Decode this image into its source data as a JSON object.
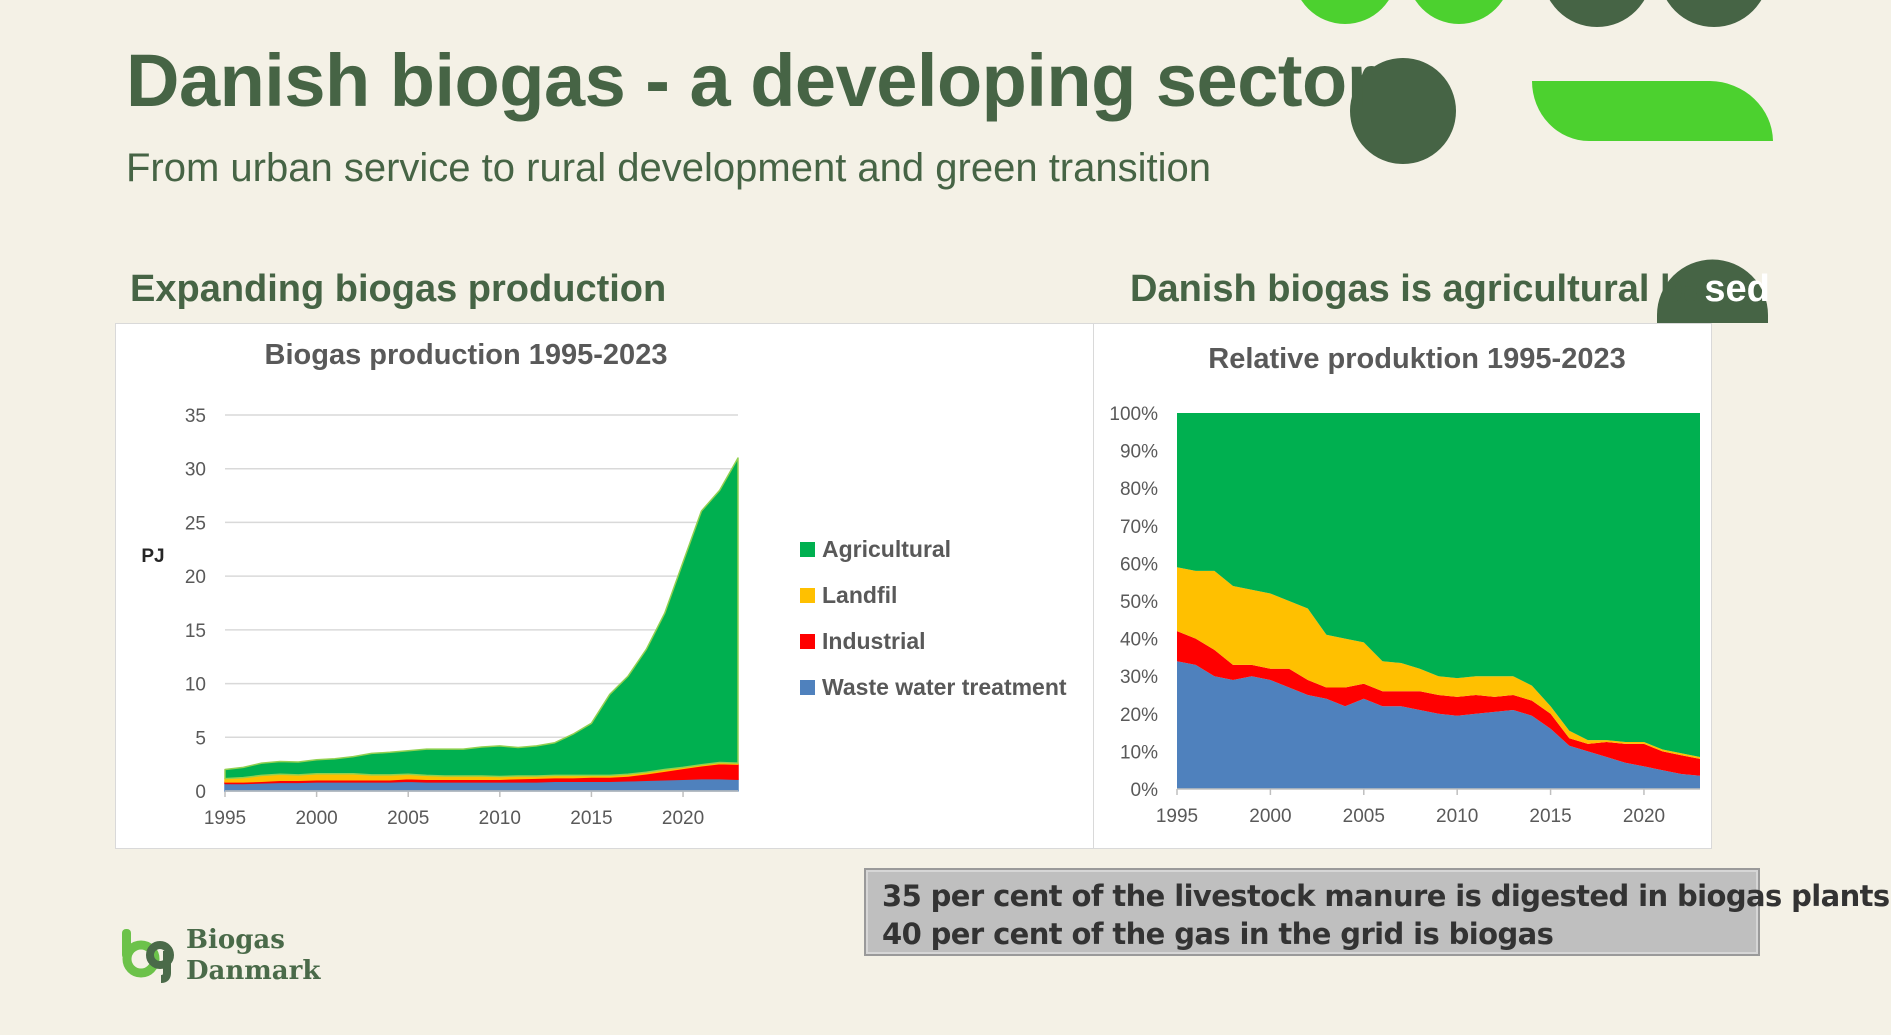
{
  "slide": {
    "title": "Danish biogas - a developing sector",
    "subtitle": "From urban service to rural development and green transition",
    "left_heading": "Expanding biogas production",
    "right_heading_dark": "Danish biogas is agricultural ba",
    "right_heading_light": "sed",
    "info_line_1": "35 per cent of the livestock manure is digested in biogas plants",
    "info_line_2": "40 per cent of the gas in the grid is biogas",
    "logo_line_1": "Biogas",
    "logo_line_2": "Danmark"
  },
  "colors": {
    "agricultural": "#00b050",
    "landfil": "#ffc000",
    "industrial": "#ff0000",
    "waste_water": "#4f81bd",
    "dark_green": "#466445",
    "bright_green": "#4cd12f"
  },
  "icons": [
    "biogas-danmark-logo-icon",
    "decorative-circle-icon"
  ],
  "chart_data": [
    {
      "type": "area",
      "stacked": true,
      "title": "Biogas production 1995-2023",
      "xlabel": "",
      "ylabel": "PJ",
      "xlim": [
        1995,
        2023
      ],
      "ylim": [
        0,
        35
      ],
      "yticks": [
        0,
        5,
        10,
        15,
        20,
        25,
        30,
        35
      ],
      "xticks": [
        1995,
        2000,
        2005,
        2010,
        2015,
        2020
      ],
      "grid": true,
      "legend": "right",
      "x": [
        1995,
        1996,
        1997,
        1998,
        1999,
        2000,
        2001,
        2002,
        2003,
        2004,
        2005,
        2006,
        2007,
        2008,
        2009,
        2010,
        2011,
        2012,
        2013,
        2014,
        2015,
        2016,
        2017,
        2018,
        2019,
        2020,
        2021,
        2022,
        2023
      ],
      "series": [
        {
          "name": "Waste water treatment",
          "color": "#4f81bd",
          "values": [
            0.7,
            0.7,
            0.75,
            0.8,
            0.8,
            0.85,
            0.85,
            0.85,
            0.85,
            0.85,
            0.9,
            0.85,
            0.85,
            0.85,
            0.85,
            0.85,
            0.85,
            0.85,
            0.9,
            0.9,
            0.9,
            0.9,
            0.95,
            1.0,
            1.05,
            1.1,
            1.15,
            1.15,
            1.1
          ]
        },
        {
          "name": "Industrial",
          "color": "#ff0000",
          "values": [
            0.15,
            0.15,
            0.15,
            0.2,
            0.2,
            0.2,
            0.2,
            0.2,
            0.2,
            0.2,
            0.25,
            0.25,
            0.25,
            0.25,
            0.25,
            0.25,
            0.3,
            0.35,
            0.35,
            0.35,
            0.4,
            0.4,
            0.45,
            0.6,
            0.8,
            1.0,
            1.2,
            1.4,
            1.4
          ]
        },
        {
          "name": "Landfil",
          "color": "#ffc000",
          "values": [
            0.3,
            0.4,
            0.55,
            0.55,
            0.5,
            0.55,
            0.55,
            0.55,
            0.45,
            0.45,
            0.4,
            0.35,
            0.3,
            0.3,
            0.3,
            0.25,
            0.25,
            0.2,
            0.2,
            0.2,
            0.15,
            0.15,
            0.15,
            0.15,
            0.15,
            0.1,
            0.1,
            0.1,
            0.1
          ]
        },
        {
          "name": "Agricultural",
          "color": "#00b050",
          "values": [
            0.85,
            0.95,
            1.15,
            1.2,
            1.2,
            1.3,
            1.4,
            1.6,
            2.0,
            2.1,
            2.2,
            2.45,
            2.5,
            2.5,
            2.7,
            2.85,
            2.65,
            2.8,
            3.05,
            3.85,
            4.85,
            7.55,
            9.15,
            11.45,
            14.55,
            19.1,
            23.6,
            25.35,
            28.4
          ]
        }
      ]
    },
    {
      "type": "area",
      "stacked": true,
      "title": "Relative produktion 1995-2023",
      "xlabel": "",
      "ylabel": "",
      "xlim": [
        1995,
        2023
      ],
      "ylim": [
        0,
        100
      ],
      "yticks": [
        0,
        10,
        20,
        30,
        40,
        50,
        60,
        70,
        80,
        90,
        100
      ],
      "y_tick_suffix": "%",
      "xticks": [
        1995,
        2000,
        2005,
        2010,
        2015,
        2020
      ],
      "grid": false,
      "x": [
        1995,
        1996,
        1997,
        1998,
        1999,
        2000,
        2001,
        2002,
        2003,
        2004,
        2005,
        2006,
        2007,
        2008,
        2009,
        2010,
        2011,
        2012,
        2013,
        2014,
        2015,
        2016,
        2017,
        2018,
        2019,
        2020,
        2021,
        2022,
        2023
      ],
      "series": [
        {
          "name": "Waste water treatment",
          "color": "#4f81bd",
          "values": [
            34,
            33,
            30,
            29,
            30,
            29,
            27,
            25,
            24,
            22,
            24,
            22,
            22,
            21,
            20,
            19.5,
            20,
            20.5,
            21,
            19.5,
            16,
            11.5,
            10,
            8.5,
            7,
            6,
            5,
            4,
            3.5
          ]
        },
        {
          "name": "Industrial",
          "color": "#ff0000",
          "values": [
            8,
            7,
            7,
            4,
            3,
            3,
            5,
            4,
            3,
            5,
            4,
            4,
            4,
            5,
            5,
            5,
            5,
            4,
            4,
            4,
            4,
            2,
            2,
            4,
            5,
            6,
            5,
            5,
            4.5
          ]
        },
        {
          "name": "Landfil",
          "color": "#ffc000",
          "values": [
            17,
            18,
            21,
            21,
            20,
            20,
            18,
            19,
            14,
            13,
            11,
            8,
            7.5,
            6,
            5,
            5,
            5,
            5.5,
            5,
            4,
            2,
            2,
            1,
            0.5,
            0.5,
            0.5,
            0.5,
            0.5,
            0.5
          ]
        },
        {
          "name": "Agricultural",
          "color": "#00b050",
          "values": [
            41,
            42,
            42,
            46,
            47,
            48,
            50,
            52,
            59,
            60,
            61,
            66,
            66.5,
            68,
            70,
            70.5,
            70,
            70,
            70,
            72.5,
            78,
            84.5,
            87,
            87,
            87.5,
            87.5,
            89.5,
            90.5,
            91.5
          ]
        }
      ]
    }
  ]
}
